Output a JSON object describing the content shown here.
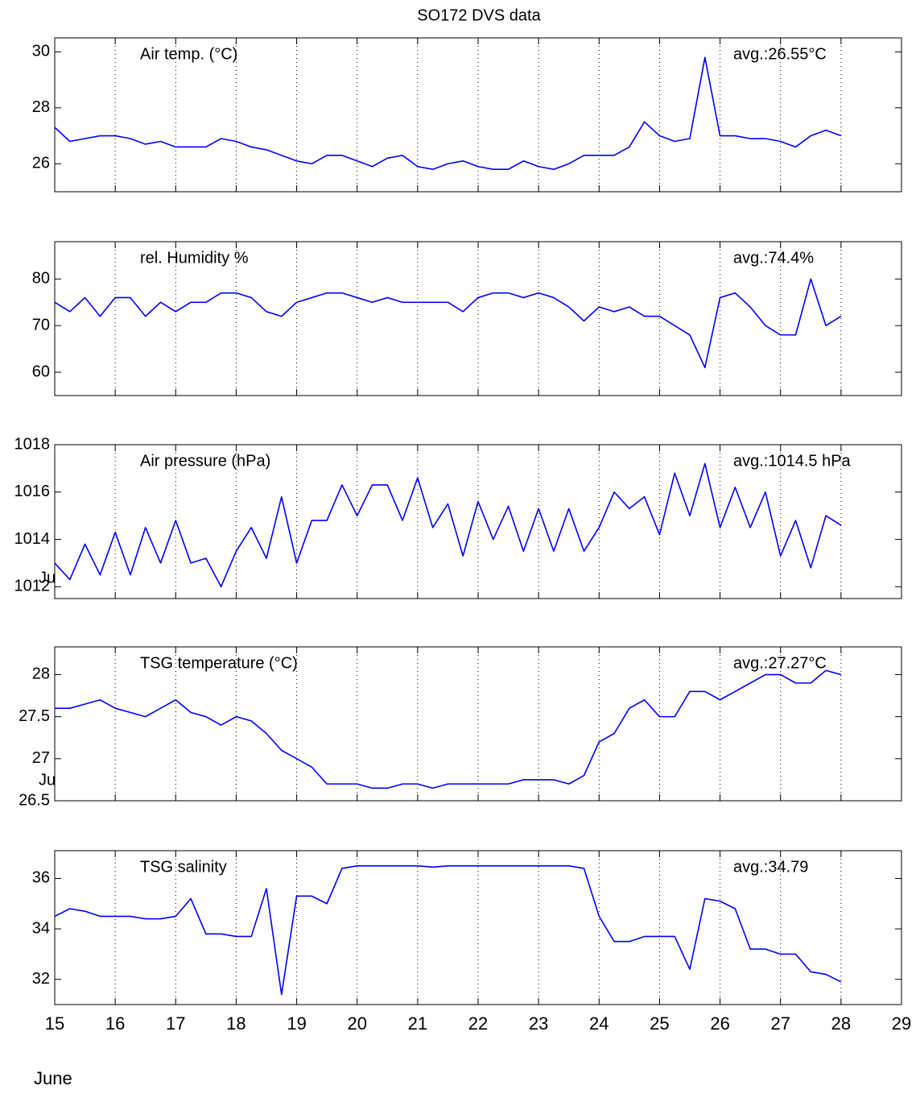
{
  "chart_data": [
    {
      "type": "line",
      "title": "SO172 DVS data",
      "annotations": [
        "Air temp. (°C)",
        "avg.:26.55°C"
      ],
      "color": "#0000ff",
      "grid": true,
      "xlim": [
        15,
        29
      ],
      "xticks": [
        15,
        16,
        17,
        18,
        19,
        20,
        21,
        22,
        23,
        24,
        25,
        26,
        27,
        28,
        29
      ],
      "ylim": [
        25,
        30.5
      ],
      "yticks": [
        26,
        28,
        30
      ],
      "x": [
        15,
        15.25,
        15.5,
        15.75,
        16,
        16.25,
        16.5,
        16.75,
        17,
        17.25,
        17.5,
        17.75,
        18,
        18.25,
        18.5,
        18.75,
        19,
        19.25,
        19.5,
        19.75,
        20,
        20.25,
        20.5,
        20.75,
        21,
        21.25,
        21.5,
        21.75,
        22,
        22.25,
        22.5,
        22.75,
        23,
        23.25,
        23.5,
        23.75,
        24,
        24.25,
        24.5,
        24.75,
        25,
        25.25,
        25.5,
        25.75,
        26,
        26.25,
        26.5,
        26.75,
        27,
        27.25,
        27.5,
        27.75,
        28
      ],
      "values": [
        27.3,
        26.8,
        26.9,
        27.0,
        27.0,
        26.9,
        26.7,
        26.8,
        26.6,
        26.6,
        26.6,
        26.9,
        26.8,
        26.6,
        26.5,
        26.3,
        26.1,
        26.0,
        26.3,
        26.3,
        26.1,
        25.9,
        26.2,
        26.3,
        25.9,
        25.8,
        26.0,
        26.1,
        25.9,
        25.8,
        25.8,
        26.1,
        25.9,
        25.8,
        26.0,
        26.3,
        26.3,
        26.3,
        26.6,
        27.5,
        27.0,
        26.8,
        26.9,
        29.8,
        27.0,
        27.0,
        26.9,
        26.9,
        26.8,
        26.6,
        27.0,
        27.2,
        27.0
      ]
    },
    {
      "type": "line",
      "annotations": [
        "rel. Humidity %",
        "avg.:74.4%"
      ],
      "color": "#0000ff",
      "grid": true,
      "xlim": [
        15,
        29
      ],
      "xticks": [
        15,
        16,
        17,
        18,
        19,
        20,
        21,
        22,
        23,
        24,
        25,
        26,
        27,
        28,
        29
      ],
      "ylim": [
        55,
        88
      ],
      "yticks": [
        60,
        70,
        80
      ],
      "x": [
        15,
        15.25,
        15.5,
        15.75,
        16,
        16.25,
        16.5,
        16.75,
        17,
        17.25,
        17.5,
        17.75,
        18,
        18.25,
        18.5,
        18.75,
        19,
        19.25,
        19.5,
        19.75,
        20,
        20.25,
        20.5,
        20.75,
        21,
        21.25,
        21.5,
        21.75,
        22,
        22.25,
        22.5,
        22.75,
        23,
        23.25,
        23.5,
        23.75,
        24,
        24.25,
        24.5,
        24.75,
        25,
        25.25,
        25.5,
        25.75,
        26,
        26.25,
        26.5,
        26.75,
        27,
        27.25,
        27.5,
        27.75,
        28
      ],
      "values": [
        75,
        73,
        76,
        72,
        76,
        76,
        72,
        75,
        73,
        75,
        75,
        77,
        77,
        76,
        73,
        72,
        75,
        76,
        77,
        77,
        76,
        75,
        76,
        75,
        75,
        75,
        75,
        73,
        76,
        77,
        77,
        76,
        77,
        76,
        74,
        71,
        74,
        73,
        74,
        72,
        72,
        70,
        68,
        61,
        76,
        77,
        74,
        70,
        68,
        68,
        80,
        70,
        72
      ]
    },
    {
      "type": "line",
      "annotations": [
        "Air pressure (hPa)",
        "avg.:1014.5 hPa",
        "Ju"
      ],
      "color": "#0000ff",
      "grid": true,
      "xlim": [
        15,
        29
      ],
      "xticks": [
        15,
        16,
        17,
        18,
        19,
        20,
        21,
        22,
        23,
        24,
        25,
        26,
        27,
        28,
        29
      ],
      "ylim": [
        1011.5,
        1018
      ],
      "yticks": [
        1012,
        1014,
        1016,
        1018
      ],
      "x": [
        15,
        15.25,
        15.5,
        15.75,
        16,
        16.25,
        16.5,
        16.75,
        17,
        17.25,
        17.5,
        17.75,
        18,
        18.25,
        18.5,
        18.75,
        19,
        19.25,
        19.5,
        19.75,
        20,
        20.25,
        20.5,
        20.75,
        21,
        21.25,
        21.5,
        21.75,
        22,
        22.25,
        22.5,
        22.75,
        23,
        23.25,
        23.5,
        23.75,
        24,
        24.25,
        24.5,
        24.75,
        25,
        25.25,
        25.5,
        25.75,
        26,
        26.25,
        26.5,
        26.75,
        27,
        27.25,
        27.5,
        27.75,
        28
      ],
      "values": [
        1013.0,
        1012.3,
        1013.8,
        1012.5,
        1014.3,
        1012.5,
        1014.5,
        1013.0,
        1014.8,
        1013.0,
        1013.2,
        1012.0,
        1013.5,
        1014.5,
        1013.2,
        1015.8,
        1013.0,
        1014.8,
        1014.8,
        1016.3,
        1015.0,
        1016.3,
        1016.3,
        1014.8,
        1016.6,
        1014.5,
        1015.5,
        1013.3,
        1015.6,
        1014.0,
        1015.4,
        1013.5,
        1015.3,
        1013.5,
        1015.3,
        1013.5,
        1014.5,
        1016.0,
        1015.3,
        1015.8,
        1014.2,
        1016.8,
        1015.0,
        1017.2,
        1014.5,
        1016.2,
        1014.5,
        1016.0,
        1013.3,
        1014.8,
        1012.8,
        1015.0,
        1014.6
      ]
    },
    {
      "type": "line",
      "annotations": [
        "TSG temperature (°C)",
        "avg.:27.27°C",
        "Ju"
      ],
      "color": "#0000ff",
      "grid": true,
      "xlim": [
        15,
        29
      ],
      "xticks": [
        15,
        16,
        17,
        18,
        19,
        20,
        21,
        22,
        23,
        24,
        25,
        26,
        27,
        28,
        29
      ],
      "ylim": [
        26.5,
        28.33
      ],
      "yticks": [
        26.5,
        27,
        27.5,
        28
      ],
      "x": [
        15,
        15.25,
        15.5,
        15.75,
        16,
        16.25,
        16.5,
        16.75,
        17,
        17.25,
        17.5,
        17.75,
        18,
        18.25,
        18.5,
        18.75,
        19,
        19.25,
        19.5,
        19.75,
        20,
        20.25,
        20.5,
        20.75,
        21,
        21.25,
        21.5,
        21.75,
        22,
        22.25,
        22.5,
        22.75,
        23,
        23.25,
        23.5,
        23.75,
        24,
        24.25,
        24.5,
        24.75,
        25,
        25.25,
        25.5,
        25.75,
        26,
        26.25,
        26.5,
        26.75,
        27,
        27.25,
        27.5,
        27.75,
        28
      ],
      "values": [
        27.6,
        27.6,
        27.65,
        27.7,
        27.6,
        27.55,
        27.5,
        27.6,
        27.7,
        27.55,
        27.5,
        27.4,
        27.5,
        27.45,
        27.3,
        27.1,
        27.0,
        26.9,
        26.7,
        26.7,
        26.7,
        26.65,
        26.65,
        26.7,
        26.7,
        26.65,
        26.7,
        26.7,
        26.7,
        26.7,
        26.7,
        26.75,
        26.75,
        26.75,
        26.7,
        26.8,
        27.2,
        27.3,
        27.6,
        27.7,
        27.5,
        27.5,
        27.8,
        27.8,
        27.7,
        27.8,
        27.9,
        28.0,
        28.0,
        27.9,
        27.9,
        28.05,
        28.0
      ]
    },
    {
      "type": "line",
      "annotations": [
        "TSG salinity",
        "avg.:34.79"
      ],
      "xlabel": "June",
      "color": "#0000ff",
      "grid": true,
      "xlim": [
        15,
        29
      ],
      "xticks": [
        15,
        16,
        17,
        18,
        19,
        20,
        21,
        22,
        23,
        24,
        25,
        26,
        27,
        28,
        29
      ],
      "ylim": [
        31,
        37.1
      ],
      "yticks": [
        32,
        34,
        36
      ],
      "x": [
        15,
        15.25,
        15.5,
        15.75,
        16,
        16.25,
        16.5,
        16.75,
        17,
        17.25,
        17.5,
        17.75,
        18,
        18.25,
        18.5,
        18.75,
        19,
        19.25,
        19.5,
        19.75,
        20,
        20.25,
        20.5,
        20.75,
        21,
        21.25,
        21.5,
        21.75,
        22,
        22.25,
        22.5,
        22.75,
        23,
        23.25,
        23.5,
        23.75,
        24,
        24.25,
        24.5,
        24.75,
        25,
        25.25,
        25.5,
        25.75,
        26,
        26.25,
        26.5,
        26.75,
        27,
        27.25,
        27.5,
        27.75,
        28
      ],
      "values": [
        34.5,
        34.8,
        34.7,
        34.5,
        34.5,
        34.5,
        34.4,
        34.4,
        34.5,
        35.2,
        33.8,
        33.8,
        33.7,
        33.7,
        35.6,
        31.4,
        35.3,
        35.3,
        35.0,
        36.4,
        36.5,
        36.5,
        36.5,
        36.5,
        36.5,
        36.45,
        36.5,
        36.5,
        36.5,
        36.5,
        36.5,
        36.5,
        36.5,
        36.5,
        36.5,
        36.4,
        34.5,
        33.5,
        33.5,
        33.7,
        33.7,
        33.7,
        32.4,
        35.2,
        35.1,
        34.8,
        33.2,
        33.2,
        33.0,
        33.0,
        32.3,
        32.2,
        31.9
      ]
    }
  ]
}
